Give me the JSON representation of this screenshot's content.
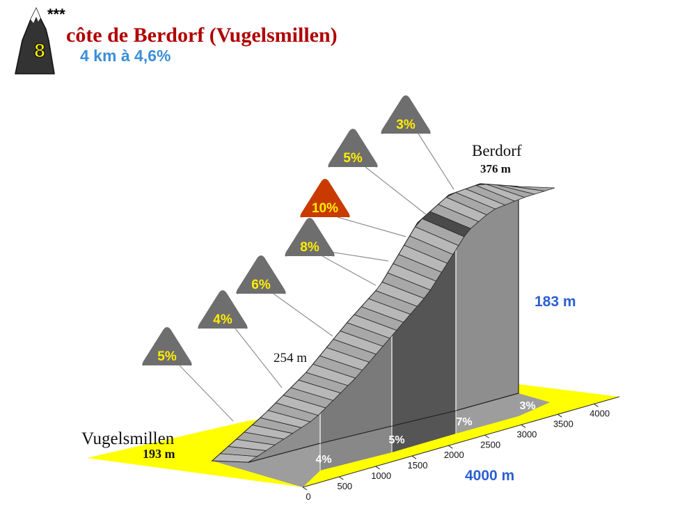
{
  "header": {
    "category_badge": "8",
    "category_stars": "***",
    "title": "côte de Berdorf (Vugelsmillen)",
    "subtitle": "4 km à 4,6%"
  },
  "colors": {
    "title": "#b00000",
    "subtitle": "#3a8fd6",
    "blue_labels": "#2b5fd0",
    "badge_text": "#ffee00",
    "badge_fill": "#6e6e6e",
    "badge_highlight": "#c83a00",
    "ground": "#ffff00"
  },
  "chart_data": {
    "type": "area",
    "title": "côte de Berdorf (Vugelsmillen)",
    "start_label": "Vugelsmillen",
    "start_altitude_label": "193 m",
    "end_label": "Berdorf",
    "end_altitude_label": "376 m",
    "mid_altitude_label": "254 m",
    "elevation_gain_label": "183 m",
    "distance_label": "4000 m",
    "x_ticks": [
      "0",
      "500",
      "1000",
      "1500",
      "2000",
      "2500",
      "3000",
      "3500",
      "4000"
    ],
    "x_range": [
      0,
      4000
    ],
    "km_segments": [
      {
        "label": "4%",
        "grade": 4
      },
      {
        "label": "5%",
        "grade": 5
      },
      {
        "label": "7%",
        "grade": 7
      },
      {
        "label": "3%",
        "grade": 3
      }
    ],
    "grade_badges": [
      {
        "label": "5%",
        "value": 5,
        "highlight": false
      },
      {
        "label": "4%",
        "value": 4,
        "highlight": false
      },
      {
        "label": "6%",
        "value": 6,
        "highlight": false
      },
      {
        "label": "8%",
        "value": 8,
        "highlight": false
      },
      {
        "label": "10%",
        "value": 10,
        "highlight": true
      },
      {
        "label": "5%",
        "value": 5,
        "highlight": false
      },
      {
        "label": "3%",
        "value": 3,
        "highlight": false
      }
    ]
  }
}
